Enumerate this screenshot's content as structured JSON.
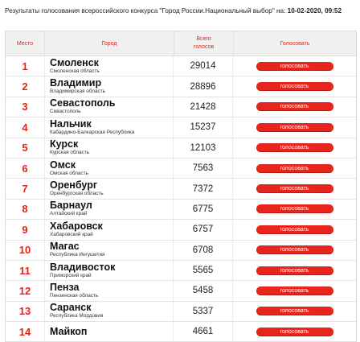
{
  "header": {
    "text": "Результаты голосования всероссийского конкурса \"Город России.Национальный выбор\" на: ",
    "date": "10-02-2020, 09:52"
  },
  "table": {
    "columns": {
      "place": "Место",
      "city": "Город",
      "votes_line1": "Всего",
      "votes_line2": "голосов",
      "vote": "Голосовать"
    },
    "vote_button_label": "голосовать",
    "rows": [
      {
        "rank": "1",
        "city": "Смоленск",
        "region": "Смоленская область",
        "votes": "29014"
      },
      {
        "rank": "2",
        "city": "Владимир",
        "region": "Владимирская область",
        "votes": "28896"
      },
      {
        "rank": "3",
        "city": "Севастополь",
        "region": "Севастополь",
        "votes": "21428"
      },
      {
        "rank": "4",
        "city": "Нальчик",
        "region": "Кабардино-Балкарская Республика",
        "votes": "15237"
      },
      {
        "rank": "5",
        "city": "Курск",
        "region": "Курская область",
        "votes": "12103"
      },
      {
        "rank": "6",
        "city": "Омск",
        "region": "Омская область",
        "votes": "7563"
      },
      {
        "rank": "7",
        "city": "Оренбург",
        "region": "Оренбургская область",
        "votes": "7372"
      },
      {
        "rank": "8",
        "city": "Барнаул",
        "region": "Алтайский край",
        "votes": "6775"
      },
      {
        "rank": "9",
        "city": "Хабаровск",
        "region": "Хабаровский край",
        "votes": "6757"
      },
      {
        "rank": "10",
        "city": "Магас",
        "region": "Республика Ингушетия",
        "votes": "6708"
      },
      {
        "rank": "11",
        "city": "Владивосток",
        "region": "Приморский край",
        "votes": "5565"
      },
      {
        "rank": "12",
        "city": "Пенза",
        "region": "Пензенская область",
        "votes": "5458"
      },
      {
        "rank": "13",
        "city": "Саранск",
        "region": "Республика Мордовия",
        "votes": "5337"
      },
      {
        "rank": "14",
        "city": "Майкоп",
        "region": "",
        "votes": "4661"
      }
    ]
  },
  "colors": {
    "accent": "#e0261c",
    "button": "#e8251c",
    "header_bg": "#f0f0f0"
  }
}
